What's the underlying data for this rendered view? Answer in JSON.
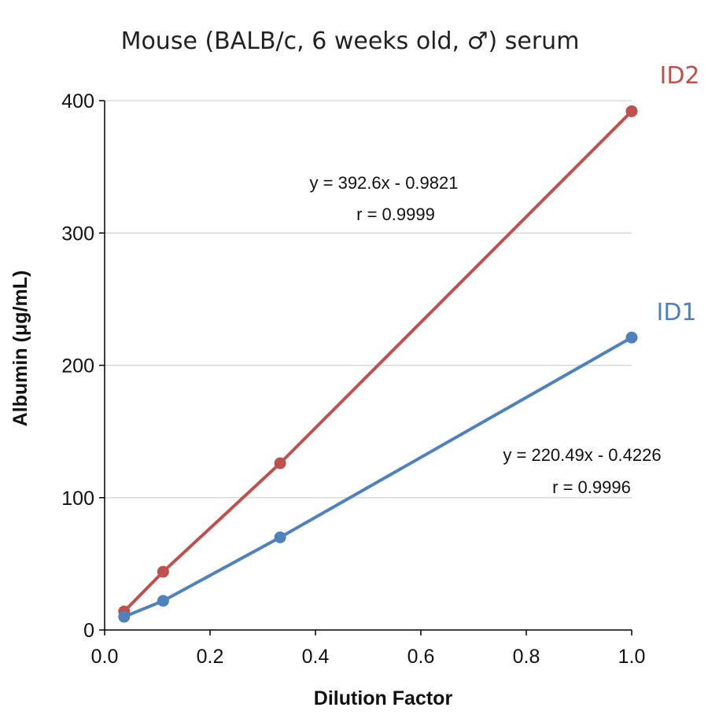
{
  "chart_data": {
    "type": "line",
    "title": "Mouse (BALB/c, 6 weeks old, ♂) serum",
    "xlabel": "Dilution Factor",
    "ylabel": "Albumin (μg/mL)",
    "xlim": [
      0,
      1
    ],
    "ylim": [
      0,
      400
    ],
    "xticks": [
      "0.0",
      "0.2",
      "0.4",
      "0.6",
      "0.8",
      "1.0"
    ],
    "yticks": [
      "0",
      "100",
      "200",
      "300",
      "400"
    ],
    "grid": "horizontal",
    "series": [
      {
        "name": "ID2",
        "color": "#c0504d",
        "x": [
          0.037,
          0.111,
          0.333,
          1.0
        ],
        "y": [
          14,
          44,
          126,
          392
        ],
        "equation": "y = 392.6x - 0.9821",
        "r": "r = 0.9999"
      },
      {
        "name": "ID1",
        "color": "#4f81bd",
        "x": [
          0.037,
          0.111,
          0.333,
          1.0
        ],
        "y": [
          10,
          22,
          70,
          221
        ],
        "equation": "y = 220.49x - 0.4226",
        "r": "r = 0.9996"
      }
    ]
  }
}
